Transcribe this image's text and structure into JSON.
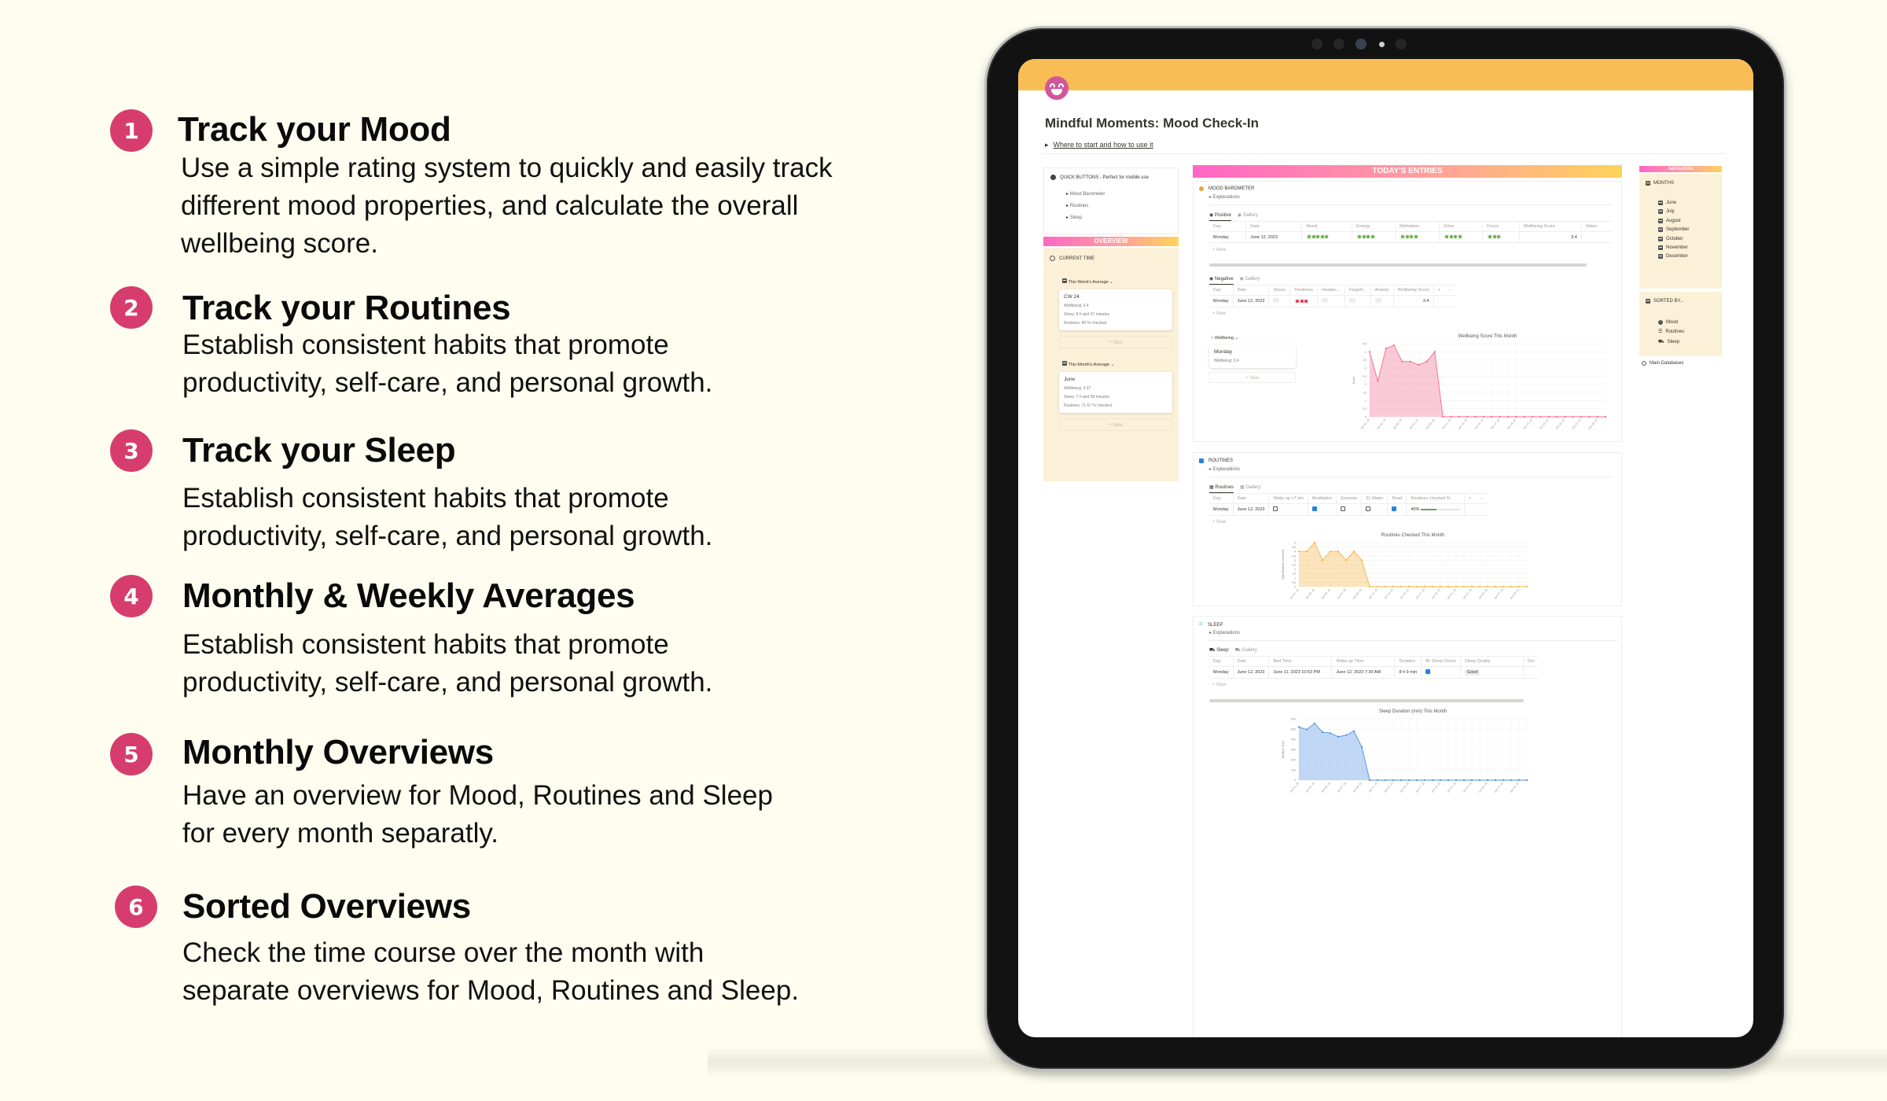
{
  "features": [
    {
      "number": "1",
      "title": "Track your Mood",
      "body": "Use a simple rating system to quickly and easily track\ndifferent mood properties, and calculate the overall\nwellbeing score."
    },
    {
      "number": "2",
      "title": "Track your Routines",
      "body": "Establish consistent habits that promote\nproductivity, self-care, and personal growth."
    },
    {
      "number": "3",
      "title": "Track your Sleep",
      "body": "Establish consistent habits that promote\nproductivity, self-care, and personal growth."
    },
    {
      "number": "4",
      "title": "Monthly & Weekly Averages",
      "body": "Establish consistent habits that promote\nproductivity, self-care, and personal growth."
    },
    {
      "number": "5",
      "title": "Monthly Overviews",
      "body": "Have an overview for Mood, Routines and Sleep\nfor every month separatly."
    },
    {
      "number": "6",
      "title": "Sorted Overviews",
      "body": "Check the time course over the month with\nseparate overviews for Mood, Routines and Sleep."
    }
  ],
  "colors": {
    "badge": "#d63d6e",
    "cover": "#f8be55",
    "background": "#fefdf0",
    "panel_cream": "#fbf0d8",
    "gradient_start": "#ff66c4",
    "gradient_end": "#ffd35c",
    "mood_positive": "#6ab04c",
    "mood_negative": "#e5364f",
    "wellbeing_chart": "#f06b8b",
    "routines_chart": "#f5b342",
    "sleep_chart": "#4a90e2"
  },
  "app": {
    "page_icon": "grinning-face-icon",
    "title": "Mindful Moments: Mood Check-In",
    "intro_toggle": "Where to start and how to use it",
    "quick_buttons": {
      "heading": "QUICK BUTTONS - Perfect for mobile use",
      "items": [
        "Mood Barometer",
        "Routines",
        "Sleep"
      ]
    },
    "overview": {
      "banner": "OVERVIEW",
      "current_time": "CURRENT TIME",
      "week_view": "This Week's Average",
      "week_card": {
        "title": "CW 24",
        "wellbeing": "Wellbeing: 3.4",
        "sleep": "Sleep: 8 h and 37 minutes",
        "routines": "Routines: 40 % checked."
      },
      "month_view": "This Month's Average",
      "month_card": {
        "title": "June",
        "wellbeing": "Wellbeing: 3.67",
        "sleep": "Sleep: 7 h and 58 minutes",
        "routines": "Routines: 71.67 % checked."
      },
      "new_label": "+ New"
    },
    "todays_entries": {
      "banner": "TODAY'S ENTRIES",
      "mood": {
        "heading": "MOOD BAROMETER",
        "explanations": "Explanations",
        "positive_tabs": [
          "Positive",
          "Gallery"
        ],
        "positive_columns": [
          "Day",
          "Date",
          "Mood",
          "Energy",
          "Motivation",
          "Drive",
          "Focus",
          "Wellbeing Score",
          "Notes"
        ],
        "positive_row": {
          "day": "Monday",
          "date": "June 12, 2023",
          "mood": 5,
          "energy": 4,
          "motivation": 4,
          "drive": 4,
          "focus": 3,
          "wellbeing": "3.4",
          "notes": ""
        },
        "negative_tabs": [
          "Negative",
          "Gallery"
        ],
        "negative_columns": [
          "Day",
          "Date",
          "Stress",
          "Tiredness",
          "Headac...",
          "Forgetf...",
          "Anxiety",
          "Wellbeing Score",
          "+",
          "···"
        ],
        "negative_row": {
          "day": "Monday",
          "date": "June 12, 2023",
          "stress": 0,
          "tiredness": 3,
          "headache": 0,
          "forgetfulness": 0,
          "anxiety": 0,
          "wellbeing": "3.4"
        },
        "wellbeing_view": "Wellbeing",
        "wellbeing_card": {
          "title": "Monday",
          "line": "Wellbeing: 3.4"
        },
        "new_label": "+ New"
      },
      "routines": {
        "heading": "ROUTINES",
        "explanations": "Explanations",
        "tabs": [
          "Routines",
          "Gallery"
        ],
        "columns": [
          "Day",
          "Date",
          "Wake up <7 am",
          "Meditation",
          "Exercise",
          "2L Water",
          "Read",
          "Routines checked %",
          "+",
          "···"
        ],
        "row": {
          "day": "Monday",
          "date": "June 12, 2023",
          "wake_up": false,
          "meditation": true,
          "exercise": false,
          "water": false,
          "read": true,
          "percent": "40%"
        },
        "new_label": "+ New"
      },
      "sleep": {
        "heading": "SLEEP",
        "explanations": "Explanations",
        "tabs": [
          "Sleep",
          "Gallery"
        ],
        "columns": [
          "Day",
          "Date",
          "Bed Time",
          "Wake up Time",
          "Duration",
          "8h Sleep Check",
          "Sleep Quality",
          "Dre"
        ],
        "row": {
          "day": "Monday",
          "date": "June 12, 2023",
          "bed_time": "June 11, 2023 10:53 PM",
          "wake_time": "June 12, 2023 7:30 AM",
          "duration": "8 h 9 min",
          "check": true,
          "quality": "Good"
        },
        "new_label": "+ New"
      }
    },
    "navigation": {
      "banner": "NAVIGATION",
      "months_heading": "MONTHS",
      "months": [
        "June",
        "July",
        "August",
        "September",
        "October",
        "November",
        "December"
      ],
      "sorted_heading": "SORTED BY...",
      "sorted": [
        "Mood",
        "Routines",
        "Sleep"
      ],
      "main_databases": "Main Databases"
    }
  },
  "chart_data": [
    {
      "type": "area",
      "title": "Wellbeing Score This Month",
      "xlabel": "",
      "ylabel": "Score",
      "ylim": [
        0,
        4.5
      ],
      "yticks": [
        0,
        0.5,
        1,
        1.5,
        2,
        2.5,
        3,
        3.5,
        4,
        4.5
      ],
      "xtick_labels": [
        "Jun 01, 23",
        "Jun 03, 23",
        "Jun 05, 23",
        "Jun 07, 23",
        "Jun 09, 23",
        "Jun 11, 23",
        "Jun 13, 23",
        "Jun 15, 23",
        "Jun 17, 23",
        "Jun 19, 23",
        "Jun 21, 23",
        "Jun 23, 23",
        "Jun 25, 23",
        "Jun 27, 23",
        "Jun 29, 23"
      ],
      "x": [
        "Jun 01",
        "Jun 02",
        "Jun 03",
        "Jun 04",
        "Jun 05",
        "Jun 06",
        "Jun 07",
        "Jun 08",
        "Jun 09",
        "Jun 10",
        "Jun 11",
        "Jun 12",
        "Jun 13",
        "Jun 14",
        "Jun 15",
        "Jun 16",
        "Jun 17",
        "Jun 18",
        "Jun 19",
        "Jun 20",
        "Jun 21",
        "Jun 22",
        "Jun 23",
        "Jun 24",
        "Jun 25",
        "Jun 26",
        "Jun 27",
        "Jun 28",
        "Jun 29",
        "Jun 30"
      ],
      "values": [
        4,
        2.2,
        4.2,
        4.4,
        3.4,
        3.4,
        3.2,
        3.4,
        4,
        0,
        0,
        0,
        0,
        0,
        0,
        0,
        0,
        0,
        0,
        0,
        0,
        0,
        0,
        0,
        0,
        0,
        0,
        0,
        0,
        0
      ],
      "color": "#f06b8b",
      "grid": true
    },
    {
      "type": "area",
      "title": "Routines Checked This Month",
      "xlabel": "",
      "ylabel": "Total Routines Checked",
      "ylim": [
        0,
        5
      ],
      "yticks": [
        0,
        0.5,
        1,
        1.5,
        2,
        2.5,
        3,
        3.5,
        4,
        4.5,
        5
      ],
      "xtick_labels": [
        "Jun 01, 23",
        "Jun 03, 23",
        "Jun 05, 23",
        "Jun 07, 23",
        "Jun 09, 23",
        "Jun 11, 23",
        "Jun 13, 23",
        "Jun 15, 23",
        "Jun 17, 23",
        "Jun 19, 23",
        "Jun 21, 23",
        "Jun 23, 23",
        "Jun 25, 23",
        "Jun 27, 23",
        "Jun 29, 23"
      ],
      "x": [
        "Jun 01",
        "Jun 02",
        "Jun 03",
        "Jun 04",
        "Jun 05",
        "Jun 06",
        "Jun 07",
        "Jun 08",
        "Jun 09",
        "Jun 10",
        "Jun 11",
        "Jun 12",
        "Jun 13",
        "Jun 14",
        "Jun 15",
        "Jun 16",
        "Jun 17",
        "Jun 18",
        "Jun 19",
        "Jun 20",
        "Jun 21",
        "Jun 22",
        "Jun 23",
        "Jun 24",
        "Jun 25",
        "Jun 26",
        "Jun 27",
        "Jun 28",
        "Jun 29",
        "Jun 30"
      ],
      "values": [
        4,
        4,
        5,
        3,
        4,
        4,
        3,
        4,
        3,
        0,
        0,
        0,
        0,
        0,
        0,
        0,
        0,
        0,
        0,
        0,
        0,
        0,
        0,
        0,
        0,
        0,
        0,
        0,
        0,
        0
      ],
      "color": "#f5b342",
      "grid": true
    },
    {
      "type": "area",
      "title": "Sleep Duration (min) This Month",
      "xlabel": "",
      "ylabel": "Duration (min)",
      "ylim": [
        0,
        600
      ],
      "yticks": [
        0,
        100,
        200,
        300,
        400,
        500,
        600
      ],
      "xtick_labels": [
        "Jun 01, 23",
        "Jun 03, 23",
        "Jun 05, 23",
        "Jun 07, 23",
        "Jun 09, 23",
        "Jun 11, 23",
        "Jun 13, 23",
        "Jun 15, 23",
        "Jun 17, 23",
        "Jun 19, 23",
        "Jun 21, 23",
        "Jun 23, 23",
        "Jun 25, 23",
        "Jun 27, 23",
        "Jun 29, 23"
      ],
      "x": [
        "Jun 01",
        "Jun 02",
        "Jun 03",
        "Jun 04",
        "Jun 05",
        "Jun 06",
        "Jun 07",
        "Jun 08",
        "Jun 09",
        "Jun 10",
        "Jun 11",
        "Jun 12",
        "Jun 13",
        "Jun 14",
        "Jun 15",
        "Jun 16",
        "Jun 17",
        "Jun 18",
        "Jun 19",
        "Jun 20",
        "Jun 21",
        "Jun 22",
        "Jun 23",
        "Jun 24",
        "Jun 25",
        "Jun 26",
        "Jun 27",
        "Jun 28",
        "Jun 29",
        "Jun 30"
      ],
      "values": [
        520,
        495,
        555,
        470,
        460,
        425,
        440,
        480,
        325,
        0,
        0,
        0,
        0,
        0,
        0,
        0,
        0,
        0,
        0,
        0,
        0,
        0,
        0,
        0,
        0,
        0,
        0,
        0,
        0,
        0
      ],
      "color": "#4a90e2",
      "grid": true
    }
  ]
}
